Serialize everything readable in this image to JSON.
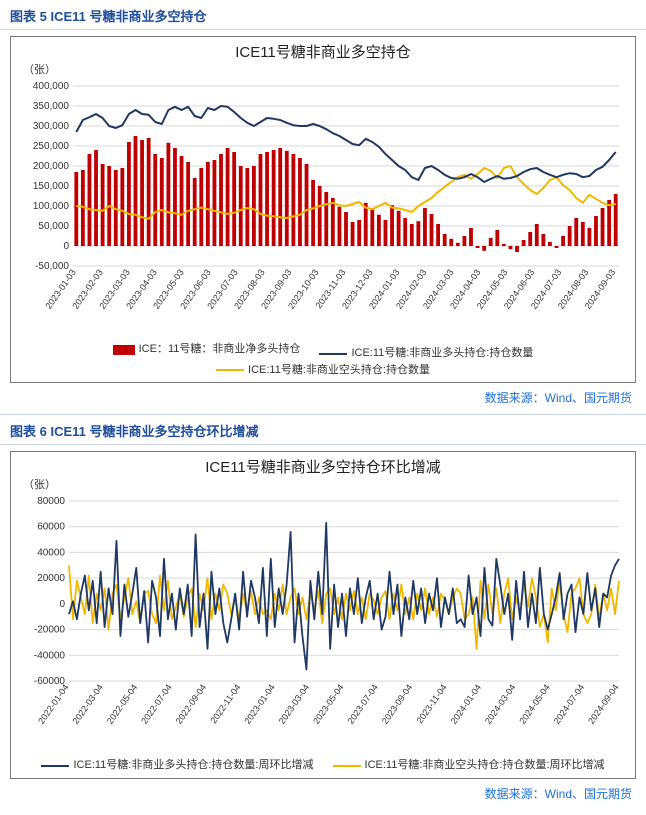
{
  "figure5": {
    "heading": "图表 5  ICE11 号糖非商业多空持仓",
    "title": "ICE11号糖非商业多空持仓",
    "y_unit": "（张）",
    "source": "数据来源：Wind、国元期货",
    "type": "bar+line",
    "background_color": "#ffffff",
    "grid_color": "#d9d9d9",
    "border_color": "#7a7a7a",
    "title_fontsize": 15,
    "ylim": [
      -50000,
      400000
    ],
    "ytick_step": 50000,
    "yticks_labels": [
      "-50,000",
      "0",
      "50,000",
      "100,000",
      "150,000",
      "200,000",
      "250,000",
      "300,000",
      "350,000",
      "400,000"
    ],
    "xticks": [
      "2023-01-03",
      "2023-02-03",
      "2023-03-03",
      "2023-04-03",
      "2023-05-03",
      "2023-06-03",
      "2023-07-03",
      "2023-08-03",
      "2023-09-03",
      "2023-10-03",
      "2023-11-03",
      "2023-12-03",
      "2024-01-03",
      "2024-02-03",
      "2024-03-03",
      "2024-04-03",
      "2024-05-03",
      "2024-06-03",
      "2024-07-03",
      "2024-08-03",
      "2024-09-03"
    ],
    "series": {
      "bars": {
        "label": "ICE：11号糖：非商业净多头持仓",
        "color": "#c00000",
        "values": [
          185000,
          190000,
          230000,
          240000,
          205000,
          200000,
          190000,
          195000,
          260000,
          275000,
          265000,
          270000,
          230000,
          220000,
          258000,
          245000,
          225000,
          210000,
          170000,
          195000,
          210000,
          215000,
          230000,
          245000,
          235000,
          200000,
          195000,
          200000,
          230000,
          235000,
          240000,
          245000,
          238000,
          230000,
          220000,
          205000,
          165000,
          150000,
          135000,
          120000,
          98000,
          85000,
          60000,
          65000,
          108000,
          95000,
          78000,
          65000,
          102000,
          88000,
          70000,
          55000,
          62000,
          95000,
          80000,
          55000,
          30000,
          18000,
          8000,
          25000,
          45000,
          -5000,
          -12000,
          20000,
          40000,
          5000,
          -8000,
          -15000,
          15000,
          35000,
          55000,
          30000,
          10000,
          -5000,
          25000,
          50000,
          70000,
          60000,
          45000,
          75000,
          95000,
          115000,
          130000
        ]
      },
      "line_long": {
        "label": "ICE:11号糖:非商业多头持仓:持仓数量",
        "color": "#203864",
        "line_width": 2,
        "values": [
          285000,
          315000,
          322000,
          330000,
          320000,
          300000,
          295000,
          302000,
          330000,
          340000,
          330000,
          328000,
          310000,
          305000,
          340000,
          348000,
          340000,
          348000,
          325000,
          320000,
          345000,
          340000,
          350000,
          348000,
          335000,
          320000,
          308000,
          300000,
          310000,
          320000,
          318000,
          315000,
          308000,
          302000,
          300000,
          300000,
          305000,
          300000,
          292000,
          282000,
          275000,
          265000,
          255000,
          252000,
          268000,
          260000,
          248000,
          230000,
          215000,
          200000,
          190000,
          172000,
          165000,
          195000,
          200000,
          190000,
          178000,
          170000,
          168000,
          172000,
          180000,
          172000,
          160000,
          168000,
          175000,
          168000,
          170000,
          175000,
          185000,
          192000,
          195000,
          185000,
          178000,
          172000,
          178000,
          182000,
          180000,
          172000,
          175000,
          190000,
          198000,
          215000,
          235000
        ]
      },
      "line_short": {
        "label": "ICE:11号糖:非商业空头持仓:持仓数量",
        "color": "#f2b800",
        "line_width": 2,
        "values": [
          100000,
          98000,
          92000,
          90000,
          88000,
          100000,
          92000,
          88000,
          80000,
          78000,
          72000,
          68000,
          85000,
          90000,
          84000,
          82000,
          78000,
          88000,
          92000,
          96000,
          92000,
          88000,
          84000,
          80000,
          83000,
          90000,
          95000,
          92000,
          80000,
          76000,
          74000,
          72000,
          70000,
          74000,
          78000,
          90000,
          94000,
          100000,
          104000,
          108000,
          102000,
          100000,
          105000,
          110000,
          96000,
          92000,
          100000,
          108000,
          96000,
          94000,
          90000,
          85000,
          100000,
          110000,
          120000,
          135000,
          148000,
          160000,
          172000,
          178000,
          168000,
          180000,
          195000,
          188000,
          170000,
          195000,
          200000,
          172000,
          155000,
          140000,
          130000,
          145000,
          165000,
          172000,
          152000,
          140000,
          120000,
          108000,
          128000,
          118000,
          108000,
          102000,
          105000
        ]
      }
    }
  },
  "figure6": {
    "heading": "图表 6  ICE11 号糖非商业多空持仓环比增减",
    "title": "ICE11号糖非商业多空持仓环比增减",
    "y_unit": "（张）",
    "source": "数据来源：Wind、国元期货",
    "type": "line",
    "background_color": "#ffffff",
    "grid_color": "#d9d9d9",
    "border_color": "#7a7a7a",
    "title_fontsize": 15,
    "ylim": [
      -60000,
      80000
    ],
    "ytick_step": 20000,
    "yticks_labels": [
      "-60000",
      "-40000",
      "-20000",
      "0",
      "20000",
      "40000",
      "60000",
      "80000"
    ],
    "xticks": [
      "2022-01-04",
      "2022-03-04",
      "2022-05-04",
      "2022-07-04",
      "2022-09-04",
      "2022-11-04",
      "2023-01-04",
      "2023-03-04",
      "2023-05-04",
      "2023-07-04",
      "2023-09-04",
      "2023-11-04",
      "2024-01-04",
      "2024-03-04",
      "2024-05-04",
      "2024-07-04",
      "2024-09-04"
    ],
    "series": {
      "line_long_wow": {
        "label": "ICE:11号糖:非商业多头持仓:持仓数量:周环比增减",
        "color": "#203864",
        "line_width": 1.8,
        "values": [
          -8000,
          2000,
          -12000,
          8000,
          22000,
          -5000,
          18000,
          -15000,
          25000,
          -18000,
          12000,
          -8000,
          49000,
          -25000,
          15000,
          -10000,
          8000,
          28000,
          -15000,
          10000,
          -30000,
          18000,
          5000,
          -25000,
          35000,
          -12000,
          8000,
          -20000,
          12000,
          -8000,
          15000,
          -25000,
          54000,
          -18000,
          8000,
          -35000,
          25000,
          -8000,
          12000,
          -15000,
          -30000,
          -12000,
          8000,
          -20000,
          25000,
          -10000,
          18000,
          5000,
          -15000,
          28000,
          -25000,
          35000,
          -18000,
          12000,
          -8000,
          15000,
          56000,
          -30000,
          8000,
          -25000,
          -51000,
          18000,
          -12000,
          25000,
          -8000,
          63000,
          -35000,
          15000,
          -18000,
          8000,
          -25000,
          12000,
          -8000,
          20000,
          -15000,
          5000,
          18000,
          -12000,
          8000,
          -20000,
          -10000,
          25000,
          -8000,
          15000,
          -25000,
          5000,
          -12000,
          18000,
          -8000,
          12000,
          -15000,
          8000,
          -5000,
          20000,
          -18000,
          5000,
          -8000,
          12000,
          -15000,
          -12000,
          -18000,
          22000,
          -8000,
          5000,
          -25000,
          28000,
          -12000,
          -17000,
          35000,
          15000,
          -8000,
          8000,
          -28000,
          18000,
          -12000,
          25000,
          -18000,
          8000,
          -15000,
          28000,
          -8000,
          -20000,
          -8000,
          5000,
          24000,
          -12000,
          8000,
          15000,
          -22000,
          5000,
          -8000,
          24000,
          -5000,
          12000,
          -18000,
          8000,
          5000,
          22000,
          30000,
          35000
        ]
      },
      "line_short_wow": {
        "label": "ICE:11号糖:非商业空头持仓:持仓数量:周环比增减",
        "color": "#f2b800",
        "line_width": 1.8,
        "values": [
          30000,
          -12000,
          18000,
          5000,
          -8000,
          22000,
          -15000,
          8000,
          -5000,
          12000,
          -20000,
          8000,
          15000,
          -12000,
          5000,
          20000,
          -8000,
          2000,
          -15000,
          8000,
          10000,
          -8000,
          -15000,
          22000,
          -5000,
          18000,
          -12000,
          -3000,
          8000,
          -10000,
          5000,
          12000,
          -18000,
          8000,
          -5000,
          20000,
          -12000,
          8000,
          -5000,
          15000,
          8000,
          -8000,
          5000,
          -12000,
          8000,
          -5000,
          10000,
          -8000,
          5000,
          -8000,
          -5000,
          -12000,
          8000,
          -5000,
          15000,
          -8000,
          5000,
          12000,
          -8000,
          5000,
          -12000,
          8000,
          -5000,
          10000,
          -15000,
          8000,
          12000,
          -8000,
          5000,
          -12000,
          8000,
          -5000,
          10000,
          -8000,
          5000,
          -12000,
          8000,
          3000,
          -8000,
          5000,
          10000,
          -12000,
          8000,
          -5000,
          15000,
          -8000,
          5000,
          -12000,
          8000,
          -5000,
          12000,
          -8000,
          5000,
          -10000,
          8000,
          3000,
          -8000,
          5000,
          12000,
          8000,
          -12000,
          -8000,
          5000,
          -35000,
          18000,
          -12000,
          15000,
          -8000,
          12000,
          -15000,
          8000,
          20000,
          -12000,
          5000,
          -8000,
          15000,
          -2000,
          20000,
          5000,
          -18000,
          -8000,
          -30000,
          12000,
          -5000,
          18000,
          -8000,
          -22000,
          8000,
          12000,
          20000,
          -8000,
          -15000,
          -8000,
          15000,
          -12000,
          8000,
          -5000,
          12000,
          -8000,
          18000
        ]
      }
    }
  }
}
